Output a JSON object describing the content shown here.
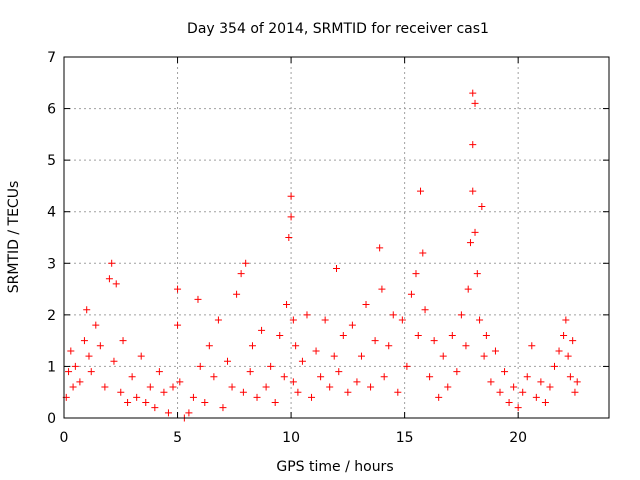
{
  "chart_data": {
    "type": "scatter",
    "title": "Day 354 of 2014, SRMTID for receiver cas1",
    "xlabel": "GPS time / hours",
    "ylabel": "SRMTID / TECUs",
    "xlim": [
      0,
      24
    ],
    "ylim": [
      0,
      7
    ],
    "xticks": [
      "0",
      "5",
      "10",
      "15",
      "20"
    ],
    "xtick_values": [
      0,
      5,
      10,
      15,
      20
    ],
    "yticks": [
      "0",
      "1",
      "2",
      "3",
      "4",
      "5",
      "6",
      "7"
    ],
    "ytick_values": [
      0,
      1,
      2,
      3,
      4,
      5,
      6,
      7
    ],
    "grid": true,
    "marker": "+",
    "series": [
      {
        "name": "SRMTID",
        "color": "#ff0000",
        "x": [
          0.1,
          0.2,
          0.3,
          0.4,
          0.5,
          0.7,
          0.9,
          1.0,
          1.1,
          1.2,
          1.4,
          1.6,
          1.8,
          2.0,
          2.1,
          2.2,
          2.3,
          2.5,
          2.6,
          2.8,
          3.0,
          3.2,
          3.4,
          3.6,
          3.8,
          4.0,
          4.2,
          4.4,
          4.6,
          4.8,
          5.0,
          5.0,
          5.1,
          5.3,
          5.5,
          5.7,
          5.9,
          6.0,
          6.2,
          6.4,
          6.6,
          6.8,
          7.0,
          7.2,
          7.4,
          7.6,
          7.8,
          7.9,
          8.0,
          8.2,
          8.3,
          8.5,
          8.7,
          8.9,
          9.1,
          9.3,
          9.5,
          9.7,
          9.8,
          9.9,
          10.0,
          10.0,
          10.1,
          10.1,
          10.2,
          10.3,
          10.5,
          10.7,
          10.9,
          11.1,
          11.3,
          11.5,
          11.7,
          11.9,
          12.0,
          12.1,
          12.3,
          12.5,
          12.7,
          12.9,
          13.1,
          13.3,
          13.5,
          13.7,
          13.9,
          14.0,
          14.1,
          14.3,
          14.5,
          14.7,
          14.9,
          15.1,
          15.3,
          15.5,
          15.6,
          15.7,
          15.8,
          15.9,
          16.1,
          16.3,
          16.5,
          16.7,
          16.9,
          17.1,
          17.3,
          17.5,
          17.7,
          17.8,
          17.9,
          18.0,
          18.0,
          18.0,
          18.1,
          18.1,
          18.2,
          18.3,
          18.4,
          18.5,
          18.6,
          18.8,
          19.0,
          19.2,
          19.4,
          19.6,
          19.8,
          20.0,
          20.2,
          20.4,
          20.6,
          20.8,
          21.0,
          21.2,
          21.4,
          21.6,
          21.8,
          22.0,
          22.1,
          22.2,
          22.3,
          22.4,
          22.5,
          22.6
        ],
        "y": [
          0.4,
          0.9,
          1.3,
          0.6,
          1.0,
          0.7,
          1.5,
          2.1,
          1.2,
          0.9,
          1.8,
          1.4,
          0.6,
          2.7,
          3.0,
          1.1,
          2.6,
          0.5,
          1.5,
          0.3,
          0.8,
          0.4,
          1.2,
          0.3,
          0.6,
          0.2,
          0.9,
          0.5,
          0.1,
          0.6,
          1.8,
          2.5,
          0.7,
          0.0,
          0.1,
          0.4,
          2.3,
          1.0,
          0.3,
          1.4,
          0.8,
          1.9,
          0.2,
          1.1,
          0.6,
          2.4,
          2.8,
          0.5,
          3.0,
          0.9,
          1.4,
          0.4,
          1.7,
          0.6,
          1.0,
          0.3,
          1.6,
          0.8,
          2.2,
          3.5,
          4.3,
          3.9,
          1.9,
          0.7,
          1.4,
          0.5,
          1.1,
          2.0,
          0.4,
          1.3,
          0.8,
          1.9,
          0.6,
          1.2,
          2.9,
          0.9,
          1.6,
          0.5,
          1.8,
          0.7,
          1.2,
          2.2,
          0.6,
          1.5,
          3.3,
          2.5,
          0.8,
          1.4,
          2.0,
          0.5,
          1.9,
          1.0,
          2.4,
          2.8,
          1.6,
          4.4,
          3.2,
          2.1,
          0.8,
          1.5,
          0.4,
          1.2,
          0.6,
          1.6,
          0.9,
          2.0,
          1.4,
          2.5,
          3.4,
          6.3,
          5.3,
          4.4,
          6.1,
          3.6,
          2.8,
          1.9,
          4.1,
          1.2,
          1.6,
          0.7,
          1.3,
          0.5,
          0.9,
          0.3,
          0.6,
          0.2,
          0.5,
          0.8,
          1.4,
          0.4,
          0.7,
          0.3,
          0.6,
          1.0,
          1.3,
          1.6,
          1.9,
          1.2,
          0.8,
          1.5,
          0.5,
          0.7
        ]
      }
    ]
  }
}
